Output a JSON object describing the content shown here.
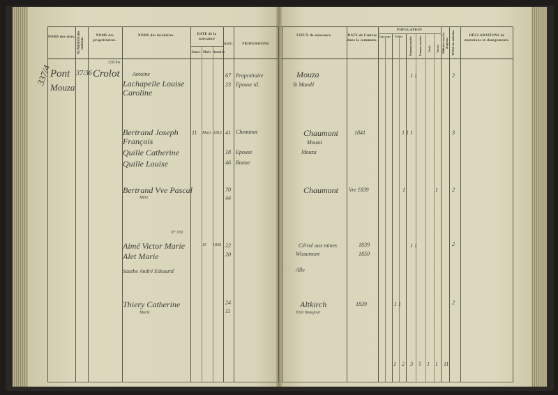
{
  "left_page": {
    "headers": {
      "noms_sites": "NOMS des sites.",
      "numeros": "NUMÉROS des maisons.",
      "noms_proprietaires": "NOMS des propriétaires.",
      "noms_locataires": "NOMS des locataires.",
      "date_naissance": "DATE de la naissance",
      "jours": "Jours",
      "mois": "Mois",
      "annees": "Années",
      "age": "AGE.",
      "professions": "PROFESSIONS."
    },
    "entries": {
      "row_number": "337/4",
      "site": "Pont",
      "site2": "Mouza",
      "house": "37/36",
      "owner": "Crolot",
      "note": "338 bis",
      "r1_name": "Antoine",
      "r1_name2": "Lachapelle Louise Caroline",
      "r1_age": "67",
      "r1_age2": "23",
      "r1_prof": "Propriétaire",
      "r1_prof2": "Epouse id.",
      "r2_name": "Bertrand Joseph François",
      "r2_day": "11",
      "r2_month": "Mars",
      "r2_year": "1812",
      "r2_age": "41",
      "r2_prof": "Cheminot",
      "r2_name2": "Quille Catherine",
      "r2_age2": "18",
      "r2_prof2": "Epouse",
      "r2_name3": "Quille Louise",
      "r2_age3": "46",
      "r2_prof3": "Bonne",
      "r3_name": "Bertrand Vve Pascal",
      "r3_name2": "Mère",
      "r3_age": "70",
      "r3_age2": "44",
      "r4_note": "N° 339",
      "r4_name": "Aimé Victor Marie",
      "r4_name2": "Alet Marie",
      "r4_day": "16",
      "r4_year": "1836",
      "r4_age": "22",
      "r4_age2": "20",
      "r5_name": "Sauthe André Edouard",
      "r6_name": "Thiery Catherine",
      "r6_name2": "Marie",
      "r6_age": "24",
      "r6_age2": "11"
    }
  },
  "right_page": {
    "headers": {
      "lieux": "LIEUX de naissance.",
      "date": "DATE de l'entrée dans la commune.",
      "population": "POPULATION",
      "garcons": "Garçons",
      "filles": "Filles",
      "hommes_maries": "Hommes mariés",
      "femmes_mariees": "Femmes mariées",
      "veufs": "Veufs",
      "veuves": "Veuves",
      "militaires": "Militaires sous les drapeaux",
      "total": "TOTAL des individus",
      "declarations": "DÉCLARATIONS de mutations et changements."
    },
    "entries": {
      "r1_place": "Mouza",
      "r1_place2": "St Mandé",
      "r1_counts": "1 1",
      "r1_total": "2",
      "r2_place": "Chaumont",
      "r2_place2": "Mouza",
      "r2_place3": "Mouza",
      "r2_date": "1841",
      "r2_counts": "1 1 1",
      "r2_total": "3",
      "r3_place": "Chaumont",
      "r3_date": "Vre 1839",
      "r3_counts": "1",
      "r3_c2": "1",
      "r3_total": "2",
      "r4_place": "Cérisé aux mines",
      "r4_place2": "Wissemont",
      "r4_date": "1839",
      "r4_date2": "1850",
      "r4_counts": "1 1",
      "r4_total": "2",
      "r5_place": "Alle",
      "r6_place": "Altkirch",
      "r6_place2": "Petit Beaujour",
      "r6_date": "1839",
      "r6_counts": "1 1",
      "r6_total": "2",
      "totals": "1 2 3 5 1 1 11"
    }
  }
}
